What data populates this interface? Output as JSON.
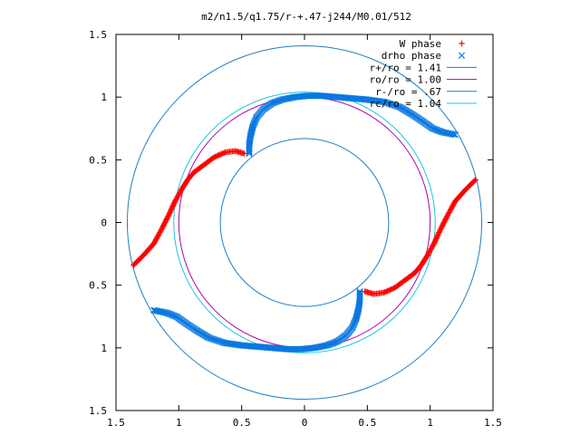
{
  "chart_data": {
    "type": "scatter",
    "title": "m2/n1.5/q1.75/r-+.47-j244/M0.01/512",
    "xlim": [
      -1.5,
      1.5
    ],
    "ylim": [
      -1.5,
      1.5
    ],
    "x_ticks": [
      -1.5,
      -1,
      -0.5,
      0,
      0.5,
      1,
      1.5
    ],
    "y_ticks": [
      -1.5,
      -1,
      -0.5,
      0,
      0.5,
      1,
      1.5
    ],
    "x_tick_labels": [
      "1.5",
      "1",
      "0.5",
      "0",
      "0.5",
      "1",
      "1.5"
    ],
    "y_tick_labels": [
      "1.5",
      "1",
      "0.5",
      "0",
      "0.5",
      "1",
      "1.5"
    ],
    "legend_position": "top-right",
    "circles": [
      {
        "name": "r+/ro = 1.41",
        "radius": 1.41,
        "color": "#1f7fbf"
      },
      {
        "name": "ro/ro = 1.00",
        "radius": 1.0,
        "color": "#b000b0"
      },
      {
        "name": "r-/ro = .67",
        "radius": 0.67,
        "color": "#1f7fbf"
      },
      {
        "name": "rc/ro = 1.04",
        "radius": 1.04,
        "color": "#20c8d8"
      }
    ],
    "series": [
      {
        "name": "W phase",
        "marker": "+",
        "color": "#ff0000",
        "arms": [
          [
            [
              -1.36,
              -0.34
            ],
            [
              -1.28,
              -0.26
            ],
            [
              -1.2,
              -0.17
            ],
            [
              -1.14,
              -0.06
            ],
            [
              -1.08,
              0.06
            ],
            [
              -1.03,
              0.17
            ],
            [
              -0.98,
              0.26
            ],
            [
              -0.93,
              0.34
            ],
            [
              -0.88,
              0.4
            ],
            [
              -0.8,
              0.46
            ],
            [
              -0.72,
              0.52
            ],
            [
              -0.63,
              0.56
            ],
            [
              -0.55,
              0.57
            ],
            [
              -0.48,
              0.55
            ]
          ],
          [
            [
              1.36,
              0.34
            ],
            [
              1.28,
              0.26
            ],
            [
              1.2,
              0.17
            ],
            [
              1.14,
              0.06
            ],
            [
              1.08,
              -0.06
            ],
            [
              1.03,
              -0.17
            ],
            [
              0.98,
              -0.26
            ],
            [
              0.93,
              -0.34
            ],
            [
              0.88,
              -0.4
            ],
            [
              0.8,
              -0.46
            ],
            [
              0.72,
              -0.52
            ],
            [
              0.63,
              -0.56
            ],
            [
              0.55,
              -0.57
            ],
            [
              0.48,
              -0.55
            ]
          ]
        ]
      },
      {
        "name": "drho phase",
        "marker": "x",
        "color": "#0a78e0",
        "arms": [
          [
            [
              1.2,
              0.7
            ],
            [
              1.1,
              0.72
            ],
            [
              1.02,
              0.75
            ],
            [
              0.95,
              0.8
            ],
            [
              0.86,
              0.86
            ],
            [
              0.76,
              0.92
            ],
            [
              0.64,
              0.96
            ],
            [
              0.5,
              0.98
            ],
            [
              0.38,
              0.99
            ],
            [
              0.26,
              1.0
            ],
            [
              0.14,
              1.01
            ],
            [
              0.02,
              1.01
            ],
            [
              -0.08,
              1.0
            ],
            [
              -0.18,
              0.98
            ],
            [
              -0.26,
              0.95
            ],
            [
              -0.33,
              0.9
            ],
            [
              -0.38,
              0.84
            ],
            [
              -0.41,
              0.77
            ],
            [
              -0.43,
              0.69
            ],
            [
              -0.44,
              0.62
            ],
            [
              -0.44,
              0.55
            ]
          ],
          [
            [
              -1.2,
              -0.7
            ],
            [
              -1.1,
              -0.72
            ],
            [
              -1.02,
              -0.75
            ],
            [
              -0.95,
              -0.8
            ],
            [
              -0.86,
              -0.86
            ],
            [
              -0.76,
              -0.92
            ],
            [
              -0.64,
              -0.96
            ],
            [
              -0.5,
              -0.98
            ],
            [
              -0.38,
              -0.99
            ],
            [
              -0.26,
              -1.0
            ],
            [
              -0.14,
              -1.01
            ],
            [
              -0.02,
              -1.01
            ],
            [
              0.08,
              -1.0
            ],
            [
              0.18,
              -0.98
            ],
            [
              0.26,
              -0.95
            ],
            [
              0.33,
              -0.9
            ],
            [
              0.38,
              -0.84
            ],
            [
              0.41,
              -0.77
            ],
            [
              0.43,
              -0.69
            ],
            [
              0.44,
              -0.62
            ],
            [
              0.44,
              -0.55
            ]
          ]
        ]
      }
    ]
  }
}
